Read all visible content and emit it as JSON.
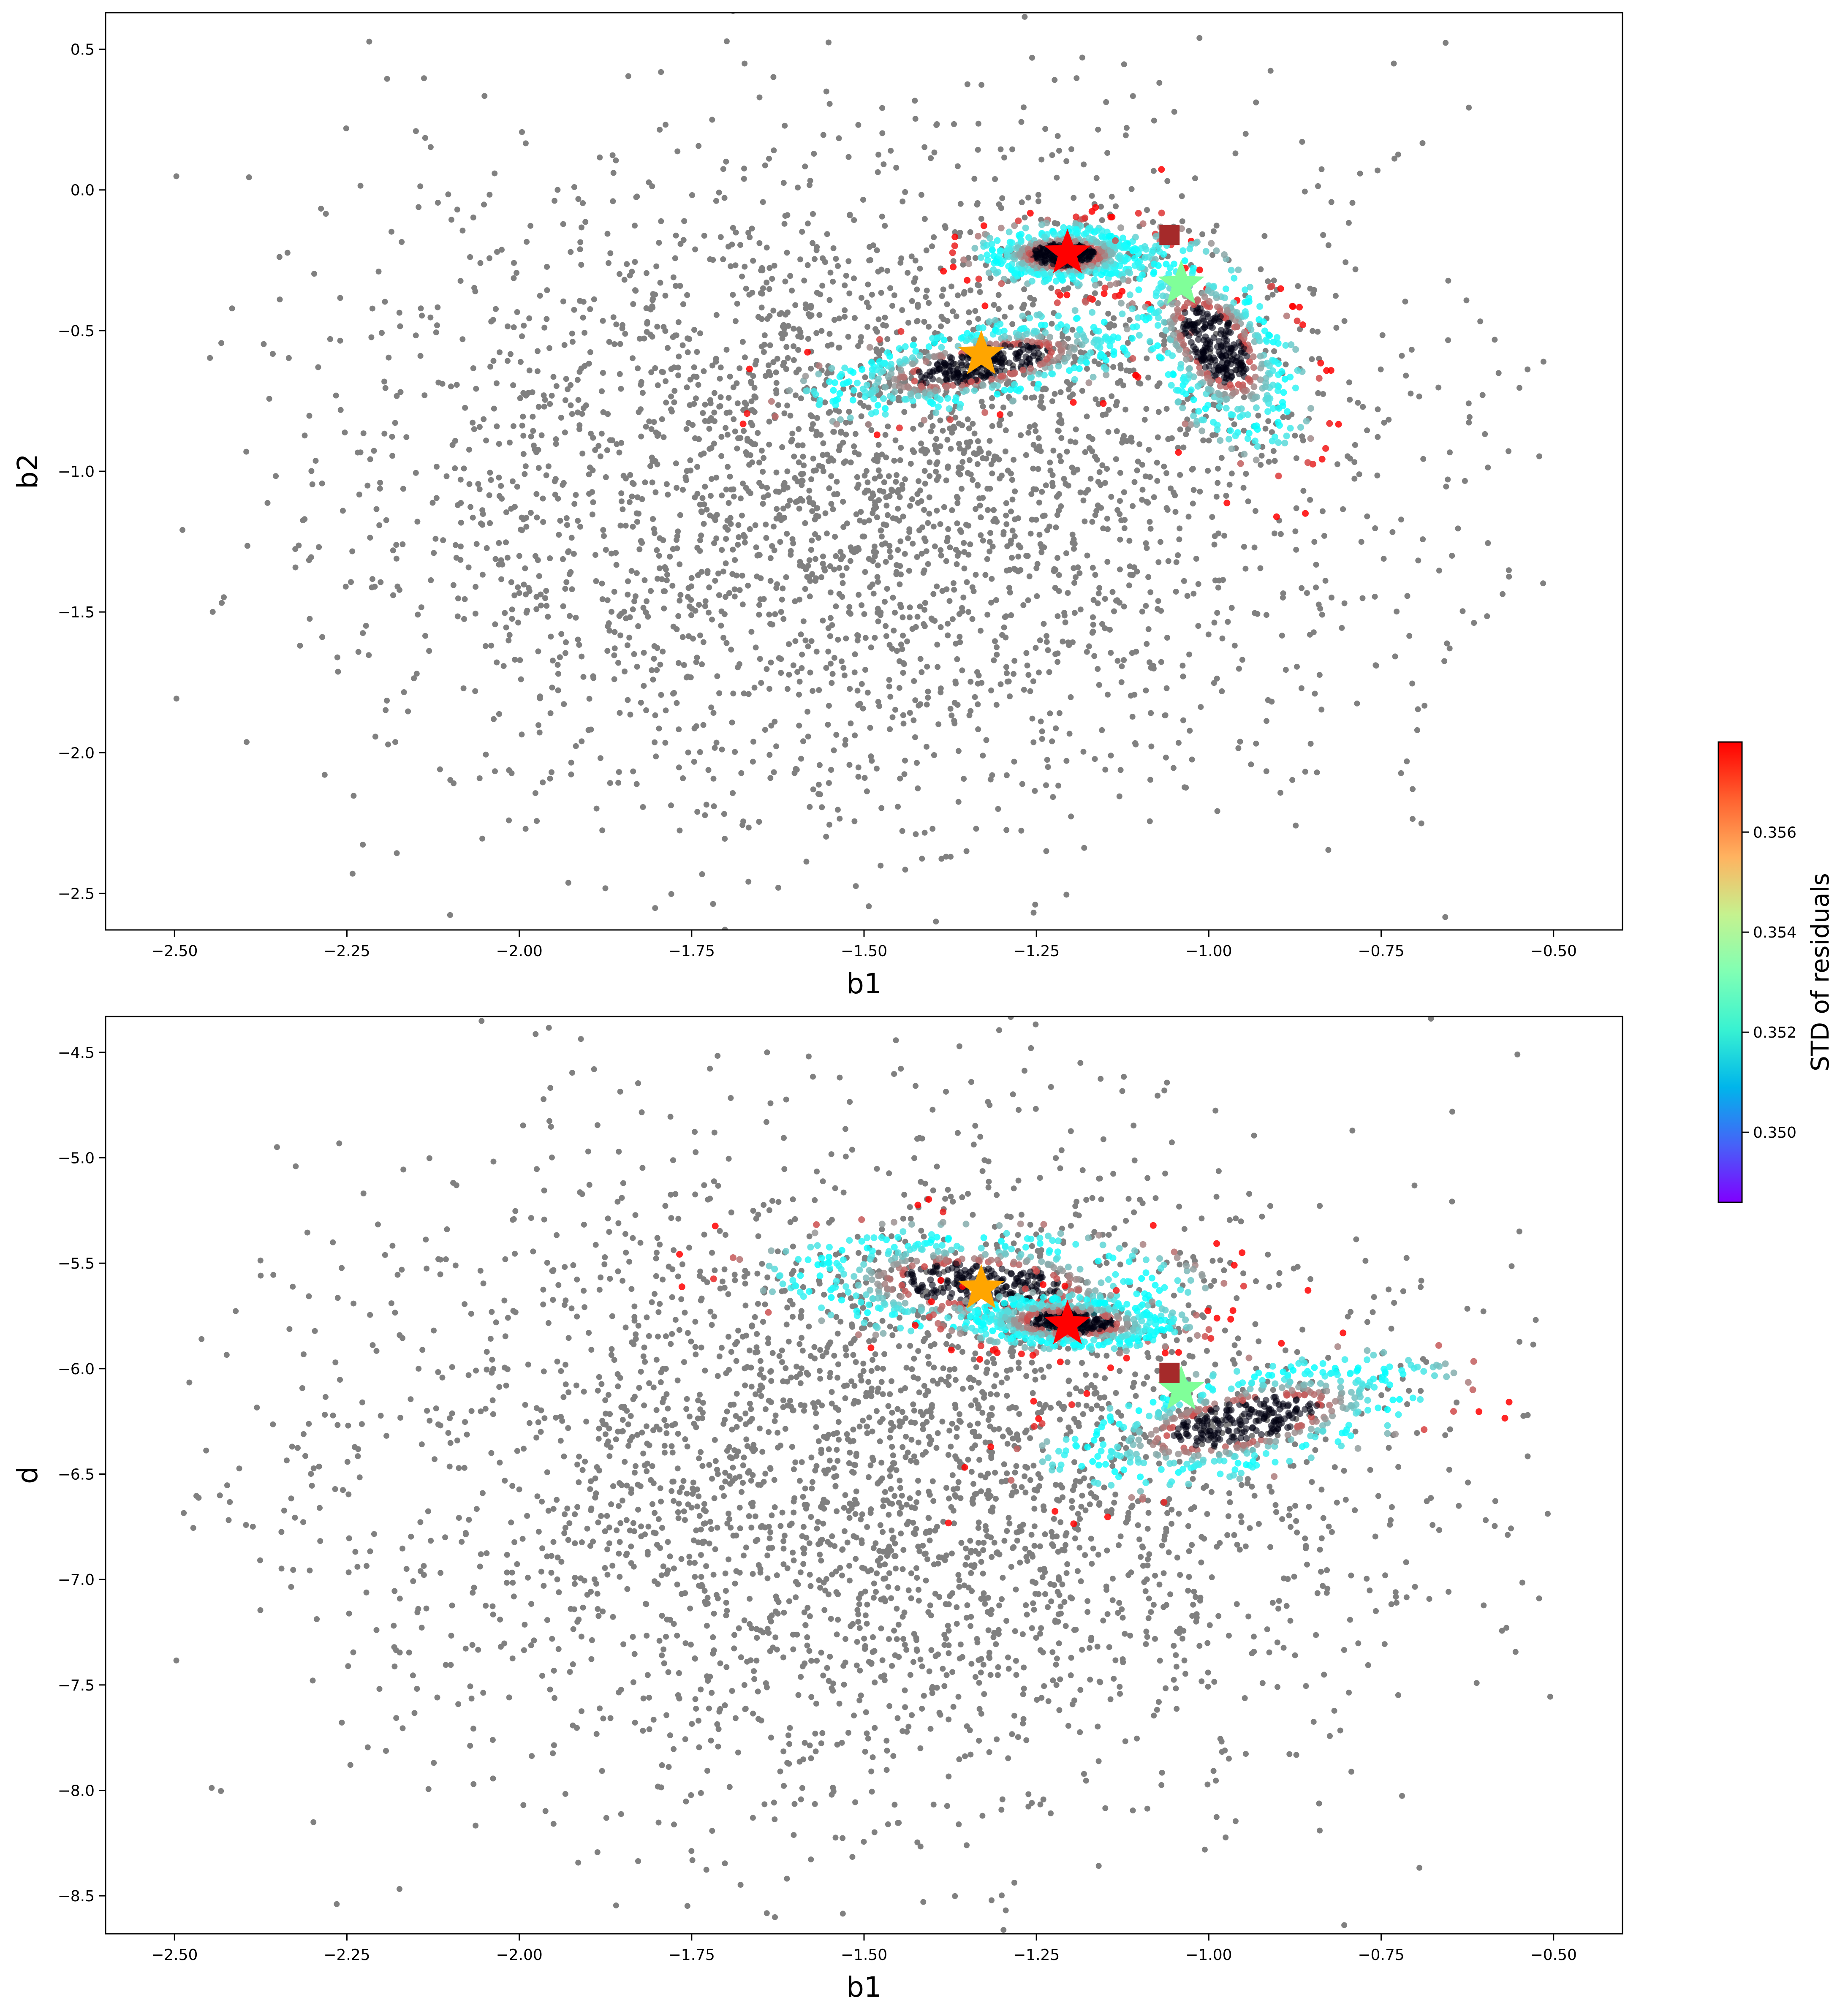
{
  "colors": {
    "background_points": "#808080",
    "best_marker": "#ff0000",
    "second_marker": "#ffa500",
    "third_marker": "#80ff99",
    "reference_marker": "#a52a2a",
    "axes": "#000000"
  },
  "colorbar": {
    "label": "STD of residuals",
    "colormap": "rainbow",
    "range": [
      0.3486,
      0.3578
    ],
    "ticks": [
      {
        "value": 0.35,
        "label": "0.350"
      },
      {
        "value": 0.352,
        "label": "0.352"
      },
      {
        "value": 0.354,
        "label": "0.354"
      },
      {
        "value": 0.356,
        "label": "0.356"
      }
    ]
  },
  "chart_data": [
    {
      "type": "scatter",
      "xlabel": "b1",
      "ylabel": "b2",
      "xlim": [
        -2.6,
        -0.4
      ],
      "ylim": [
        -2.63,
        0.63
      ],
      "xticks": [
        {
          "value": -2.5,
          "label": "−2.50"
        },
        {
          "value": -2.25,
          "label": "−2.25"
        },
        {
          "value": -2.0,
          "label": "−2.00"
        },
        {
          "value": -1.75,
          "label": "−1.75"
        },
        {
          "value": -1.5,
          "label": "−1.50"
        },
        {
          "value": -1.25,
          "label": "−1.25"
        },
        {
          "value": -1.0,
          "label": "−1.00"
        },
        {
          "value": -0.75,
          "label": "−0.75"
        },
        {
          "value": -0.5,
          "label": "−0.50"
        }
      ],
      "yticks": [
        {
          "value": 0.5,
          "label": "0.5"
        },
        {
          "value": 0.0,
          "label": "0.0"
        },
        {
          "value": -0.5,
          "label": "−0.5"
        },
        {
          "value": -1.0,
          "label": "−1.0"
        },
        {
          "value": -1.5,
          "label": "−1.5"
        },
        {
          "value": -2.0,
          "label": "−2.0"
        },
        {
          "value": -2.5,
          "label": "−2.5"
        }
      ],
      "markers": [
        {
          "shape": "star",
          "x": -1.205,
          "y": -0.225,
          "color": "#ff0000"
        },
        {
          "shape": "star",
          "x": -1.33,
          "y": -0.585,
          "color": "#ffa500"
        },
        {
          "shape": "star",
          "x": -1.04,
          "y": -0.335,
          "color": "#80ff99"
        },
        {
          "shape": "square",
          "x": -1.057,
          "y": -0.16,
          "color": "#a52a2a"
        }
      ],
      "clusters": [
        {
          "x": -1.21,
          "y": -0.23,
          "spread": [
            0.06,
            0.05
          ],
          "tilt": 0.0
        },
        {
          "x": -1.33,
          "y": -0.62,
          "spread": [
            0.14,
            0.06
          ],
          "tilt": 0.55
        },
        {
          "x": -0.99,
          "y": -0.55,
          "spread": [
            0.05,
            0.18
          ],
          "tilt": 0.2
        }
      ]
    },
    {
      "type": "scatter",
      "xlabel": "b1",
      "ylabel": "d",
      "xlim": [
        -2.6,
        -0.4
      ],
      "ylim": [
        -8.68,
        -4.33
      ],
      "xticks": [
        {
          "value": -2.5,
          "label": "−2.50"
        },
        {
          "value": -2.25,
          "label": "−2.25"
        },
        {
          "value": -2.0,
          "label": "−2.00"
        },
        {
          "value": -1.75,
          "label": "−1.75"
        },
        {
          "value": -1.5,
          "label": "−1.50"
        },
        {
          "value": -1.25,
          "label": "−1.25"
        },
        {
          "value": -1.0,
          "label": "−1.00"
        },
        {
          "value": -0.75,
          "label": "−0.75"
        },
        {
          "value": -0.5,
          "label": "−0.50"
        }
      ],
      "yticks": [
        {
          "value": -4.5,
          "label": "−4.5"
        },
        {
          "value": -5.0,
          "label": "−5.0"
        },
        {
          "value": -5.5,
          "label": "−5.5"
        },
        {
          "value": -6.0,
          "label": "−6.0"
        },
        {
          "value": -6.5,
          "label": "−6.5"
        },
        {
          "value": -7.0,
          "label": "−7.0"
        },
        {
          "value": -7.5,
          "label": "−7.5"
        },
        {
          "value": -8.0,
          "label": "−8.0"
        },
        {
          "value": -8.5,
          "label": "−8.5"
        }
      ],
      "markers": [
        {
          "shape": "star",
          "x": -1.205,
          "y": -5.79,
          "color": "#ff0000"
        },
        {
          "shape": "star",
          "x": -1.33,
          "y": -5.62,
          "color": "#ffa500"
        },
        {
          "shape": "star",
          "x": -1.04,
          "y": -6.1,
          "color": "#80ff99"
        },
        {
          "shape": "square",
          "x": -1.057,
          "y": -6.02,
          "color": "#a52a2a"
        }
      ],
      "clusters": [
        {
          "x": -1.33,
          "y": -5.6,
          "spread": [
            0.15,
            0.12
          ],
          "tilt": -0.45
        },
        {
          "x": -1.2,
          "y": -5.78,
          "spread": [
            0.08,
            0.06
          ],
          "tilt": -0.3
        },
        {
          "x": -0.95,
          "y": -6.25,
          "spread": [
            0.09,
            0.18
          ],
          "tilt": -0.7
        }
      ]
    }
  ]
}
